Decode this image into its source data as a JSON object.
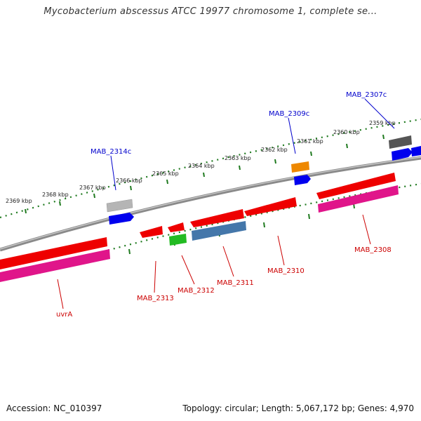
{
  "header": {
    "title": "Mycobacterium abscessus ATCC 19977 chromosome 1, complete se..."
  },
  "footer": {
    "accession": "Accession: NC_010397",
    "info": "Topology: circular; Length: 5,067,172 bp; Genes: 4,970"
  },
  "colors": {
    "backbone": "#888888",
    "tick": "#1f7a1f",
    "label_top": "#0000cc",
    "label_bottom": "#cc0000",
    "gene_red": "#ee0000",
    "gene_pink": "#e0158a",
    "gene_blue": "#0000ee",
    "gene_gray": "#aaaaaa",
    "gene_darkgray": "#555555",
    "gene_orange": "#ee8800",
    "gene_green": "#22bb22",
    "gene_steel": "#4477aa"
  },
  "scale": {
    "ticks": [
      "2369 kbp",
      "2368 kbp",
      "2367 kbp",
      "2366 kbp",
      "2365 kbp",
      "2364 kbp",
      "2363 kbp",
      "2362 kbp",
      "2361 kbp",
      "2360 kbp",
      "2359 kbp"
    ]
  },
  "gene_labels": {
    "top": [
      "MAB_2314c",
      "MAB_2309c",
      "MAB_2307c"
    ],
    "bottom": [
      "uvrA",
      "MAB_2313",
      "MAB_2312",
      "MAB_2311",
      "MAB_2310",
      "MAB_2308"
    ]
  }
}
